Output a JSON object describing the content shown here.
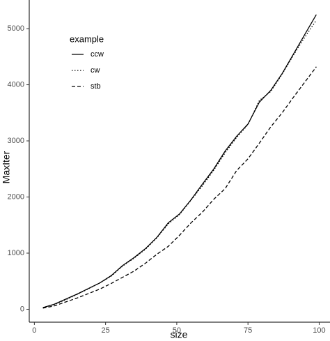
{
  "chart_data": {
    "type": "line",
    "x_label": "size",
    "y_label": "MaxIter",
    "legend_title": "example",
    "x": [
      3,
      7,
      11,
      15,
      19,
      23,
      27,
      31,
      35,
      39,
      43,
      47,
      51,
      55,
      59,
      63,
      67,
      71,
      75,
      79,
      83,
      87,
      91,
      95,
      99
    ],
    "series": [
      {
        "name": "ccw",
        "color": "#000000",
        "dash": "solid",
        "values": [
          30,
          90,
          180,
          270,
          370,
          470,
          600,
          780,
          920,
          1080,
          1280,
          1540,
          1700,
          1950,
          2230,
          2500,
          2820,
          3080,
          3300,
          3690,
          3900,
          4200,
          4550,
          4900,
          5250
        ]
      },
      {
        "name": "cw",
        "color": "#000000",
        "dash": "dotted",
        "values": [
          30,
          85,
          170,
          265,
          365,
          470,
          590,
          770,
          910,
          1070,
          1270,
          1520,
          1690,
          1940,
          2200,
          2480,
          2790,
          3060,
          3290,
          3720,
          3880,
          4190,
          4530,
          4850,
          5150
        ]
      },
      {
        "name": "stb",
        "color": "#000000",
        "dash": "dashed",
        "values": [
          20,
          60,
          130,
          200,
          280,
          360,
          460,
          570,
          680,
          820,
          980,
          1120,
          1320,
          1540,
          1730,
          1960,
          2150,
          2470,
          2680,
          2960,
          3250,
          3500,
          3780,
          4050,
          4320
        ]
      }
    ],
    "xlim": [
      -1.8,
      103.8
    ],
    "xticks": [
      0,
      25,
      50,
      75,
      100
    ],
    "ylim": [
      -230,
      5510
    ],
    "yticks": [
      0,
      1000,
      2000,
      3000,
      4000,
      5000
    ],
    "grid": false
  }
}
